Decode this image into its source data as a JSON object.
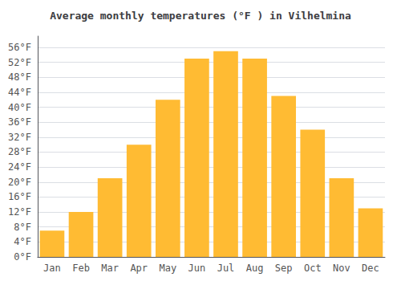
{
  "chart_data": {
    "type": "bar",
    "title": "Average monthly temperatures (°F ) in Vilhelmina",
    "categories": [
      "Jan",
      "Feb",
      "Mar",
      "Apr",
      "May",
      "Jun",
      "Jul",
      "Aug",
      "Sep",
      "Oct",
      "Nov",
      "Dec"
    ],
    "values": [
      7,
      12,
      21,
      30,
      42,
      53,
      55,
      53,
      43,
      34,
      21,
      13
    ],
    "color": "#FFBB33",
    "ylim": [
      0,
      59
    ],
    "yticks": [
      {
        "value": 0,
        "label": "0°F"
      },
      {
        "value": 4,
        "label": "4°F"
      },
      {
        "value": 8,
        "label": "8°F"
      },
      {
        "value": 12,
        "label": "12°F"
      },
      {
        "value": 16,
        "label": "16°F"
      },
      {
        "value": 20,
        "label": "20°F"
      },
      {
        "value": 24,
        "label": "24°F"
      },
      {
        "value": 28,
        "label": "28°F"
      },
      {
        "value": 32,
        "label": "32°F"
      },
      {
        "value": 36,
        "label": "36°F"
      },
      {
        "value": 40,
        "label": "40°F"
      },
      {
        "value": 44,
        "label": "44°F"
      },
      {
        "value": 48,
        "label": "48°F"
      },
      {
        "value": 52,
        "label": "52°F"
      },
      {
        "value": 56,
        "label": "56°F"
      }
    ],
    "grid": true
  }
}
